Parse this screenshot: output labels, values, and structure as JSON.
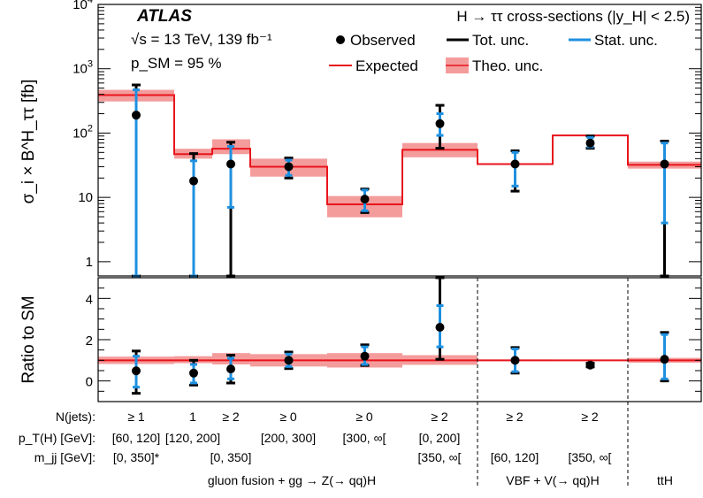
{
  "chart_data": {
    "type": "scatter",
    "title": "H → ττ cross-sections (|y_H| < 2.5)",
    "experiment": "ATLAS",
    "energy_text": "√s = 13 TeV, 139 fb⁻¹",
    "psm_text": "p_SM = 95 %",
    "ylabel_top": "σ_i × B^H_ττ [fb]",
    "ylabel_bottom": "Ratio to SM",
    "yscale_top": "log",
    "ylim_top": [
      0.6,
      10000
    ],
    "ylim_bottom": [
      -1.0,
      5.0
    ],
    "yticks_top": [
      1,
      10,
      100,
      1000,
      10000
    ],
    "yticks_bottom": [
      0,
      2,
      4
    ],
    "legend": {
      "observed": "Observed",
      "tot": "Tot. unc.",
      "stat": "Stat. unc.",
      "expected": "Expected",
      "theo": "Theo. unc."
    },
    "colors": {
      "observed": "#000000",
      "tot": "#000000",
      "stat": "#1e90e0",
      "expected": "#e8141c",
      "theo": "#f28b8b"
    },
    "bins": [
      {
        "njets": "≥ 1",
        "pt": "[60, 120]",
        "mjj": "[0, 350]*",
        "expected": 390,
        "theo_lo": 310,
        "theo_hi": 470,
        "observed": 190,
        "tot_lo": 0.4,
        "tot_hi": 560,
        "stat_lo": 0.4,
        "stat_hi": 470,
        "ratio": 0.49,
        "r_tot_lo": -0.6,
        "r_tot_hi": 1.45,
        "r_stat_lo": -0.3,
        "r_stat_hi": 1.2,
        "r_theo_lo": 0.82,
        "r_theo_hi": 1.18
      },
      {
        "njets": "1",
        "pt": "[120, 200]",
        "mjj": "",
        "expected": 47,
        "theo_lo": 40,
        "theo_hi": 57,
        "observed": 18,
        "tot_lo": 0.4,
        "tot_hi": 48,
        "stat_lo": 0.4,
        "stat_hi": 37,
        "ratio": 0.38,
        "r_tot_lo": -0.2,
        "r_tot_hi": 1.0,
        "r_stat_lo": -0.1,
        "r_stat_hi": 0.8,
        "r_theo_lo": 0.86,
        "r_theo_hi": 1.2
      },
      {
        "njets": "≥ 2",
        "pt": "",
        "mjj": "[0, 350]",
        "expected": 57,
        "theo_lo": 47,
        "theo_hi": 80,
        "observed": 33,
        "tot_lo": 0.4,
        "tot_hi": 72,
        "stat_lo": 7,
        "stat_hi": 62,
        "ratio": 0.58,
        "r_tot_lo": -0.1,
        "r_tot_hi": 1.25,
        "r_stat_lo": 0.1,
        "r_stat_hi": 1.1,
        "r_theo_lo": 0.8,
        "r_theo_hi": 1.35
      },
      {
        "njets": "≥ 0",
        "pt": "[200, 300]",
        "mjj": "",
        "expected": 30,
        "theo_lo": 21,
        "theo_hi": 40,
        "observed": 30,
        "tot_lo": 20,
        "tot_hi": 41,
        "stat_lo": 22,
        "stat_hi": 38,
        "ratio": 1.0,
        "r_tot_lo": 0.6,
        "r_tot_hi": 1.4,
        "r_stat_lo": 0.7,
        "r_stat_hi": 1.3,
        "r_theo_lo": 0.7,
        "r_theo_hi": 1.3
      },
      {
        "njets": "≥ 0",
        "pt": "[300, ∞[",
        "mjj": "",
        "expected": 7.8,
        "theo_lo": 4.9,
        "theo_hi": 10.5,
        "observed": 9.4,
        "tot_lo": 5.8,
        "tot_hi": 13.5,
        "stat_lo": 6.2,
        "stat_hi": 13.0,
        "ratio": 1.2,
        "r_tot_lo": 0.75,
        "r_tot_hi": 1.75,
        "r_stat_lo": 0.8,
        "r_stat_hi": 1.65,
        "r_theo_lo": 0.65,
        "r_theo_hi": 1.35
      },
      {
        "njets": "≥ 2",
        "pt": "[0, 200]",
        "mjj": "[350, ∞[",
        "expected": 55,
        "theo_lo": 42,
        "theo_hi": 70,
        "observed": 140,
        "tot_lo": 58,
        "tot_hi": 270,
        "stat_lo": 92,
        "stat_hi": 200,
        "ratio": 2.6,
        "r_tot_lo": 1.05,
        "r_tot_hi": 5.0,
        "r_stat_lo": 1.65,
        "r_stat_hi": 3.65,
        "r_theo_lo": 0.78,
        "r_theo_hi": 1.25
      },
      {
        "njets": "≥ 2",
        "pt": "",
        "mjj": "[60, 120]",
        "expected": 33,
        "theo_lo": 32,
        "theo_hi": 34,
        "observed": 33,
        "tot_lo": 12.5,
        "tot_hi": 53,
        "stat_lo": 15,
        "stat_hi": 50,
        "ratio": 1.0,
        "r_tot_lo": 0.38,
        "r_tot_hi": 1.62,
        "r_stat_lo": 0.45,
        "r_stat_hi": 1.55,
        "r_theo_lo": 0.96,
        "r_theo_hi": 1.04
      },
      {
        "njets": "≥ 2",
        "pt": "",
        "mjj": "[350, ∞[",
        "expected": 92,
        "theo_lo": 90,
        "theo_hi": 94,
        "observed": 70,
        "tot_lo": 58,
        "tot_hi": 90,
        "stat_lo": 61,
        "stat_hi": 85,
        "ratio": 0.77,
        "r_tot_lo": 0.68,
        "r_tot_hi": 0.86,
        "r_stat_lo": 0.7,
        "r_stat_hi": 0.84,
        "r_theo_lo": 0.98,
        "r_theo_hi": 1.02
      },
      {
        "njets": "",
        "pt": "",
        "mjj": "",
        "expected": 32,
        "theo_lo": 28,
        "theo_hi": 36,
        "observed": 33,
        "tot_lo": 0.4,
        "tot_hi": 75,
        "stat_lo": 4,
        "stat_hi": 70,
        "ratio": 1.05,
        "r_tot_lo": 0.0,
        "r_tot_hi": 2.35,
        "r_stat_lo": 0.1,
        "r_stat_hi": 2.25,
        "r_theo_lo": 0.88,
        "r_theo_hi": 1.12
      }
    ],
    "row_labels": {
      "njets": "N(jets):",
      "pt": "p_T(H) [GeV]:",
      "mjj": "m_jj [GeV]:"
    },
    "groups": [
      {
        "label": "gluon fusion + gg → Z(→ qq)H",
        "from": 0,
        "to": 5
      },
      {
        "label": "VBF + V(→ qq)H",
        "from": 6,
        "to": 7
      },
      {
        "label": "ttH",
        "from": 8,
        "to": 8
      }
    ]
  }
}
